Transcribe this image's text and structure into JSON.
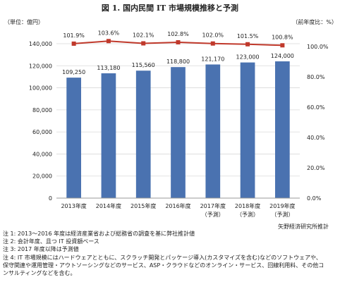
{
  "chart_data": {
    "type": "bar",
    "title": "図 1. 国内民間 IT 市場規模推移と予測",
    "ylabel": "（単位：億円）",
    "y2label": "（前年度比：%）",
    "categories": [
      [
        "2013年度"
      ],
      [
        "2014年度"
      ],
      [
        "2015年度"
      ],
      [
        "2016年度"
      ],
      [
        "2017年度",
        "（予測）"
      ],
      [
        "2018年度",
        "（予測）"
      ],
      [
        "2019年度",
        "（予測）"
      ]
    ],
    "ylim": [
      0,
      140000
    ],
    "yticks": [
      "0",
      "20,000",
      "40,000",
      "60,000",
      "80,000",
      "100,000",
      "120,000",
      "140,000"
    ],
    "y2lim": [
      0,
      100
    ],
    "y2ticks": [
      "0.0%",
      "20.0%",
      "40.0%",
      "60.0%",
      "80.0%",
      "100.0%"
    ],
    "series": [
      {
        "type": "bar",
        "values": [
          109250,
          113180,
          115560,
          118800,
          121170,
          123000,
          124000
        ],
        "labels": [
          "109,250",
          "113,180",
          "115,560",
          "118,800",
          "121,170",
          "123,000",
          "124,000"
        ],
        "color": "#4a72b0"
      },
      {
        "type": "line",
        "axis": "right",
        "values": [
          101.9,
          103.6,
          102.1,
          102.8,
          102.0,
          101.5,
          100.8
        ],
        "labels": [
          "101.9%",
          "103.6%",
          "102.1%",
          "102.8%",
          "102.0%",
          "101.5%",
          "100.8%"
        ],
        "color": "#c0392b"
      }
    ],
    "grid": true
  },
  "source": "矢野経済研究所推計",
  "notes": [
    "注 1: 2013～2016 年度は経済産業省および総務省の調査を基に弊社推計値",
    "注 2: 会計年度、且つ IT 投資額ベース",
    "注 3: 2017 年度以降は予測値",
    "注 4: IT 市場規模にはハードウェアとともに、スクラッチ開発とパッケージ導入(カスタマイズを含む)などのソフトウェアや、",
    "保守関連や運用管理・アウトソーシングなどのサービス、ASP・クラウドなどのオンライン・サービス、回線利用料、その他コ",
    "ンサルティングなどを含む。"
  ]
}
